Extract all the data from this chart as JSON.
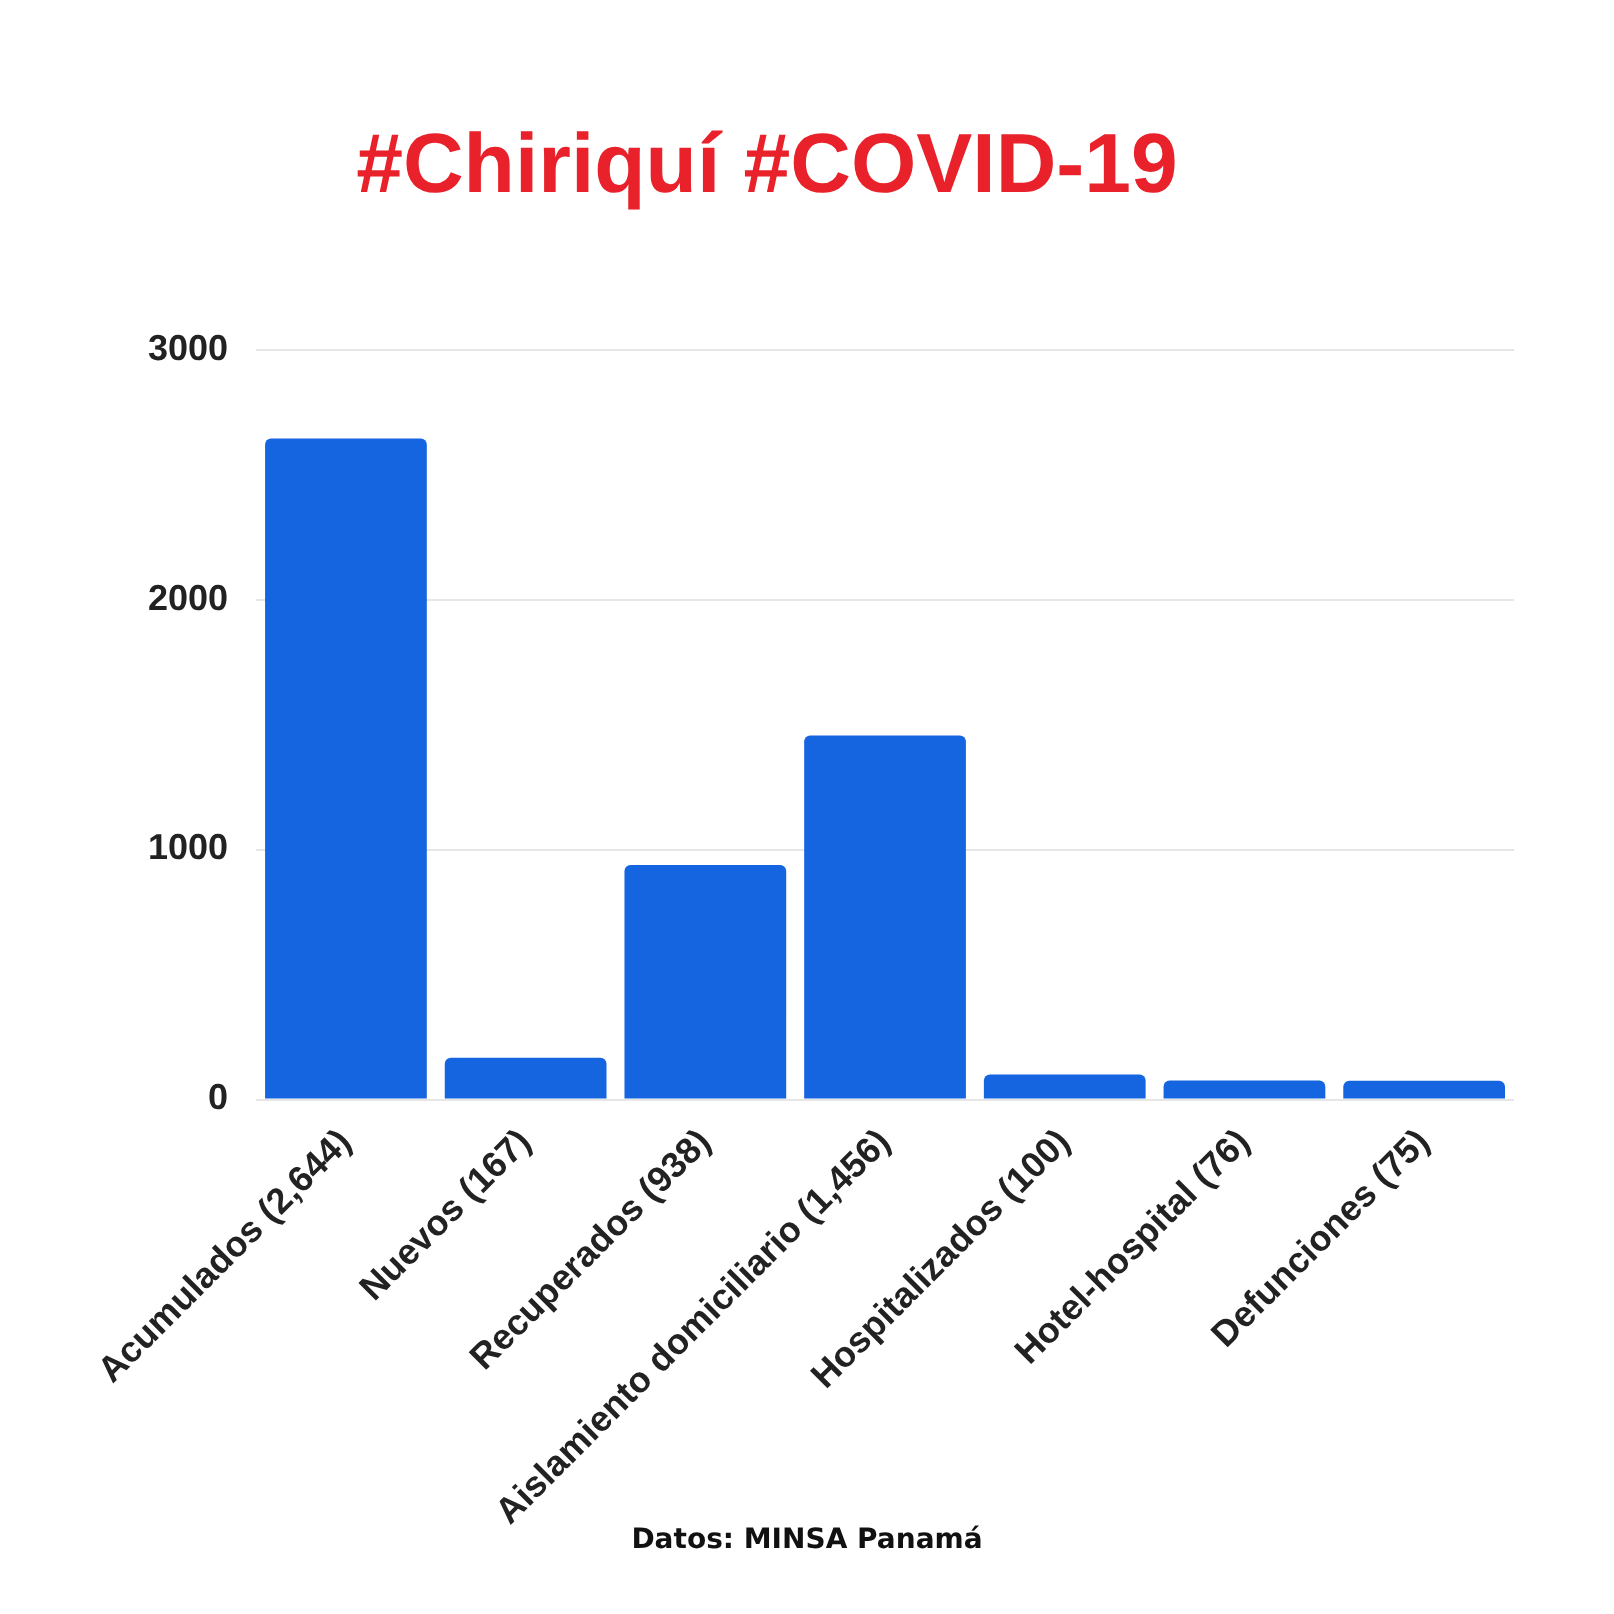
{
  "chart_data": {
    "type": "bar",
    "title": "#Chiriquí #COVID-19",
    "categories": [
      "Acumulados (2,644)",
      "Nuevos (167)",
      "Recuperados (938)",
      "Aislamiento domiciliario (1,456)",
      "Hospitalizados (100)",
      "Hotel-hospital (76)",
      "Defunciones (75)"
    ],
    "values": [
      2644,
      167,
      938,
      1456,
      100,
      76,
      75
    ],
    "color": "#1565e0",
    "ylim": [
      0,
      3000
    ],
    "yticks": [
      0,
      1000,
      2000,
      3000
    ],
    "grid": "y",
    "legend": false,
    "annotations": [
      "Datos: MINSA Panamá"
    ]
  }
}
